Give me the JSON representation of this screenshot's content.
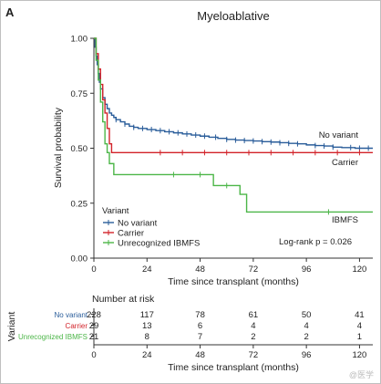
{
  "panel_label": "A",
  "watermark": "@医学",
  "chart_data": {
    "type": "line",
    "title": "Myeloablative",
    "xlabel": "Time since transplant (months)",
    "ylabel": "Survival probability",
    "xlim": [
      0,
      126
    ],
    "ylim": [
      0,
      1
    ],
    "x_ticks": [
      "0",
      "24",
      "48",
      "72",
      "96",
      "120"
    ],
    "y_ticks": [
      "0.00",
      "0.25",
      "0.50",
      "0.75",
      "1.00"
    ],
    "legend_title": "Variant",
    "legend_position": "bottom-left",
    "annotation": "Log-rank p = 0.026",
    "series": [
      {
        "name": "No variant",
        "end_label": "No variant",
        "color": "#2a5d9a",
        "points": [
          [
            0,
            1.0
          ],
          [
            0.5,
            0.96
          ],
          [
            1,
            0.92
          ],
          [
            1.5,
            0.88
          ],
          [
            2,
            0.84
          ],
          [
            2.5,
            0.8
          ],
          [
            3,
            0.77
          ],
          [
            4,
            0.73
          ],
          [
            5,
            0.7
          ],
          [
            6,
            0.68
          ],
          [
            7,
            0.66
          ],
          [
            8,
            0.65
          ],
          [
            9,
            0.64
          ],
          [
            10,
            0.63
          ],
          [
            12,
            0.62
          ],
          [
            14,
            0.61
          ],
          [
            16,
            0.6
          ],
          [
            18,
            0.595
          ],
          [
            20,
            0.59
          ],
          [
            24,
            0.585
          ],
          [
            28,
            0.58
          ],
          [
            32,
            0.575
          ],
          [
            36,
            0.57
          ],
          [
            40,
            0.565
          ],
          [
            44,
            0.56
          ],
          [
            48,
            0.555
          ],
          [
            52,
            0.55
          ],
          [
            56,
            0.545
          ],
          [
            60,
            0.54
          ],
          [
            64,
            0.537
          ],
          [
            68,
            0.535
          ],
          [
            72,
            0.533
          ],
          [
            76,
            0.53
          ],
          [
            80,
            0.528
          ],
          [
            84,
            0.525
          ],
          [
            88,
            0.522
          ],
          [
            92,
            0.52
          ],
          [
            96,
            0.515
          ],
          [
            100,
            0.512
          ],
          [
            104,
            0.51
          ],
          [
            108,
            0.505
          ],
          [
            112,
            0.503
          ],
          [
            118,
            0.5
          ],
          [
            126,
            0.5
          ]
        ],
        "censor_x": [
          10,
          14,
          18,
          22,
          26,
          30,
          34,
          38,
          42,
          46,
          50,
          55,
          60,
          64,
          68,
          72,
          76,
          80,
          84,
          88,
          92,
          100,
          104,
          108,
          116,
          120,
          124
        ]
      },
      {
        "name": "Carrier",
        "end_label": "Carrier",
        "color": "#d2232a",
        "points": [
          [
            0,
            1.0
          ],
          [
            1,
            0.93
          ],
          [
            2,
            0.86
          ],
          [
            3,
            0.79
          ],
          [
            4,
            0.72
          ],
          [
            5,
            0.66
          ],
          [
            6,
            0.59
          ],
          [
            7,
            0.52
          ],
          [
            8,
            0.48
          ],
          [
            126,
            0.48
          ]
        ],
        "censor_x": [
          30,
          40,
          50,
          60,
          70,
          80,
          90,
          100,
          110,
          120
        ]
      },
      {
        "name": "Unrecognized IBMFS",
        "end_label": "IBMFS",
        "color": "#4cb648",
        "points": [
          [
            0,
            1.0
          ],
          [
            1,
            0.9
          ],
          [
            2,
            0.81
          ],
          [
            3,
            0.71
          ],
          [
            4,
            0.62
          ],
          [
            5,
            0.52
          ],
          [
            6,
            0.48
          ],
          [
            7,
            0.43
          ],
          [
            9,
            0.38
          ],
          [
            54,
            0.38
          ],
          [
            54,
            0.33
          ],
          [
            66,
            0.33
          ],
          [
            66,
            0.29
          ],
          [
            69,
            0.29
          ],
          [
            69,
            0.21
          ],
          [
            126,
            0.21
          ]
        ],
        "censor_x": [
          36,
          48,
          60,
          106
        ]
      }
    ],
    "risk_table": {
      "title": "Number at risk",
      "y_title": "Variant",
      "rows": [
        {
          "name": "No variant",
          "color": "#2a5d9a",
          "values": [
            "228",
            "117",
            "78",
            "61",
            "50",
            "41"
          ]
        },
        {
          "name": "Carrier",
          "color": "#d2232a",
          "values": [
            "29",
            "13",
            "6",
            "4",
            "4",
            "4"
          ]
        },
        {
          "name": "Unrecognized IBMFS",
          "color": "#4cb648",
          "values": [
            "21",
            "8",
            "7",
            "2",
            "2",
            "1"
          ]
        }
      ],
      "x_ticks": [
        "0",
        "24",
        "48",
        "72",
        "96",
        "120"
      ],
      "xlabel": "Time since transplant (months)"
    }
  }
}
